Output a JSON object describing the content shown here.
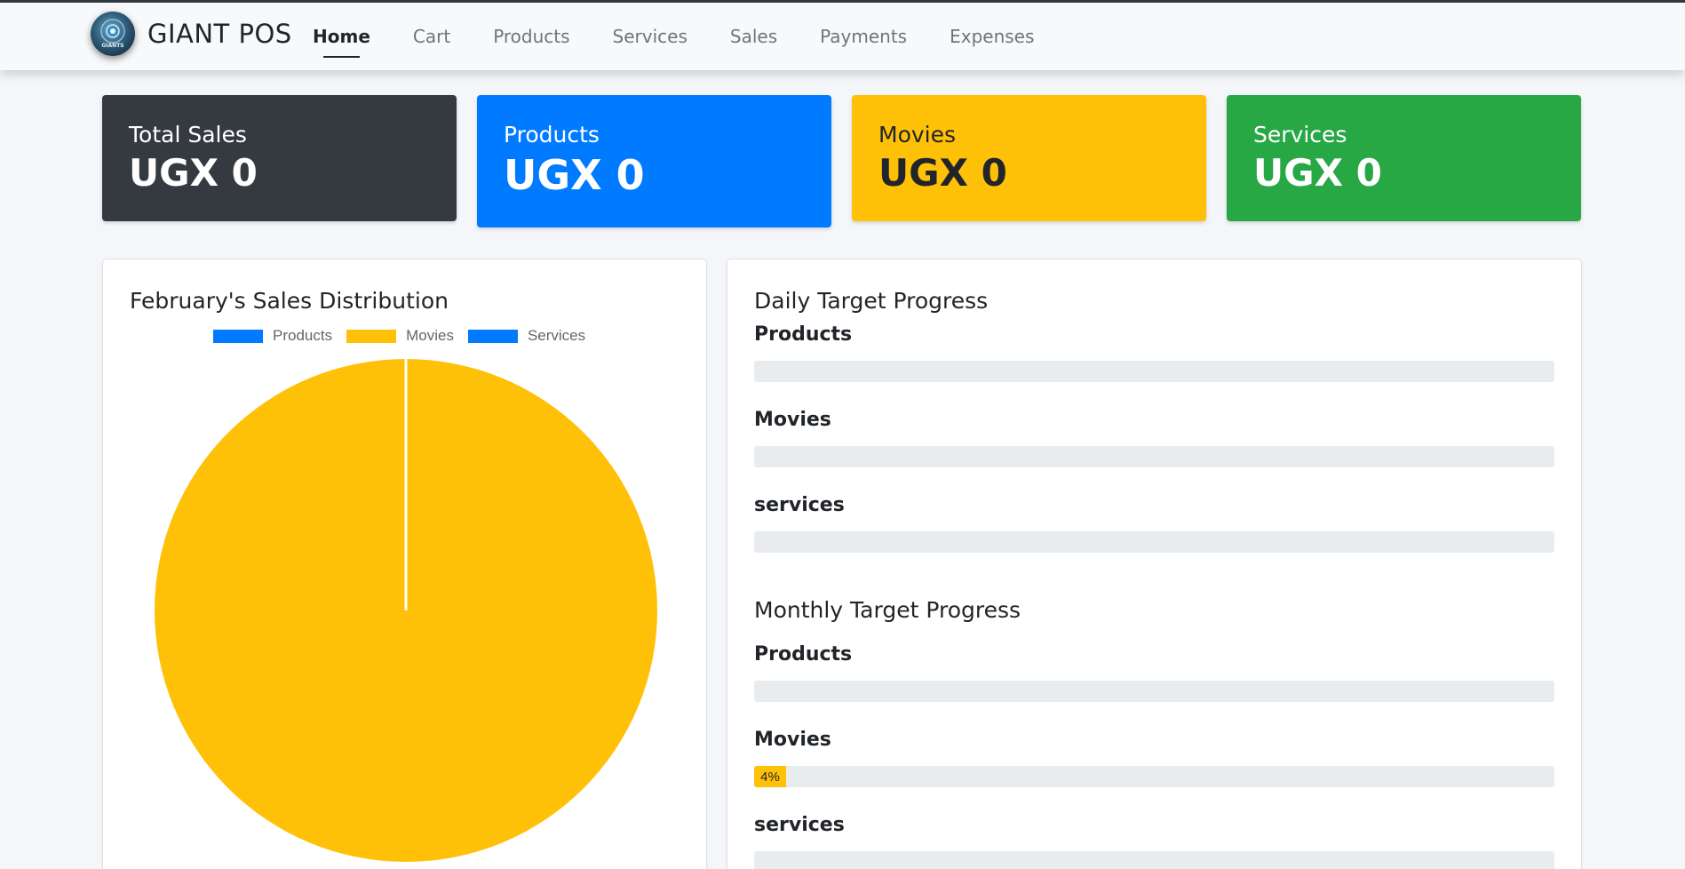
{
  "app": {
    "brand": "GIANT POS",
    "logo_text": "GIANTS"
  },
  "nav": {
    "items": [
      {
        "label": "Home",
        "active": true
      },
      {
        "label": "Cart"
      },
      {
        "label": "Products"
      },
      {
        "label": "Services"
      },
      {
        "label": "Sales"
      },
      {
        "label": "Payments"
      },
      {
        "label": "Expenses"
      }
    ]
  },
  "cards": {
    "total": {
      "label": "Total Sales",
      "value": "UGX 0",
      "color": "#343a40"
    },
    "products": {
      "label": "Products",
      "value": "UGX 0",
      "color": "#007bff"
    },
    "movies": {
      "label": "Movies",
      "value": "UGX 0",
      "color": "#ffc107"
    },
    "services": {
      "label": "Services",
      "value": "UGX 0",
      "color": "#28a745"
    }
  },
  "distribution": {
    "title": "February's Sales Distribution"
  },
  "chart_data": {
    "type": "pie",
    "title": "February's Sales Distribution",
    "categories": [
      "Products",
      "Movies",
      "Services"
    ],
    "values": [
      0,
      100,
      0
    ],
    "colors": [
      "#007bff",
      "#ffc107",
      "#007bff"
    ],
    "legend": "top"
  },
  "daily": {
    "title": "Daily Target Progress",
    "bars": [
      {
        "label": "Products",
        "percent": 0,
        "text": ""
      },
      {
        "label": "Movies",
        "percent": 0,
        "text": ""
      },
      {
        "label": "services",
        "percent": 0,
        "text": ""
      }
    ]
  },
  "monthly": {
    "title": "Monthly Target Progress",
    "bars": [
      {
        "label": "Products",
        "percent": 0,
        "text": ""
      },
      {
        "label": "Movies",
        "percent": 4,
        "text": "4%",
        "color": "#ffc107"
      },
      {
        "label": "services",
        "percent": 0,
        "text": ""
      }
    ]
  }
}
